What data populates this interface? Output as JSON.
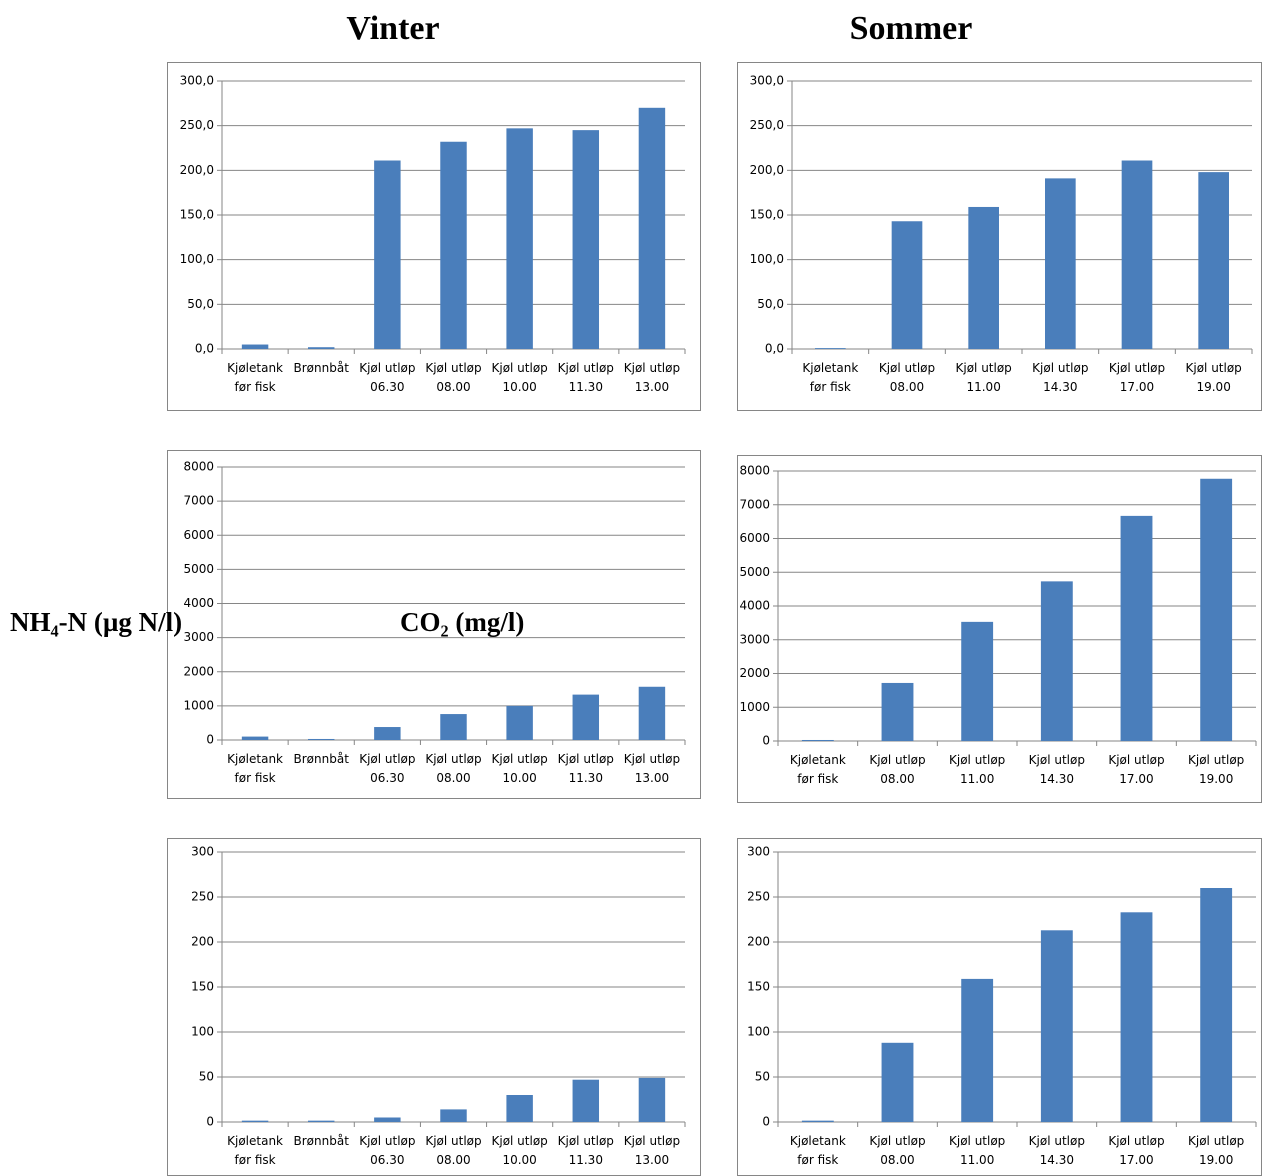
{
  "columns": [
    "Vinter",
    "Sommer"
  ],
  "row_labels": [
    "NH₄-N (µg N/l)",
    "CO₂ (mg/l)"
  ],
  "chart_data": [
    {
      "type": "bar",
      "categories": [
        "Kjøletank før fisk",
        "Brønnbåt",
        "Kjøl utløp 06.30",
        "Kjøl utløp 08.00",
        "Kjøl utløp 10.00",
        "Kjøl utløp 11.30",
        "Kjøl utløp 13.00"
      ],
      "values": [
        5,
        2,
        211,
        232,
        247,
        245,
        270
      ],
      "color": "#4a7ebb",
      "ylim": [
        0,
        300
      ],
      "yticks": [
        {
          "value": 0,
          "label": "0,0"
        },
        {
          "value": 50,
          "label": "50,0"
        },
        {
          "value": 100,
          "label": "100,0"
        },
        {
          "value": 150,
          "label": "150,0"
        },
        {
          "value": 200,
          "label": "200,0"
        },
        {
          "value": 250,
          "label": "250,0"
        },
        {
          "value": 300,
          "label": "300,0"
        }
      ],
      "grid": true
    },
    {
      "type": "bar",
      "categories": [
        "Kjøletank før fisk",
        "Kjøl utløp 08.00",
        "Kjøl utløp 11.00",
        "Kjøl utløp 14.30",
        "Kjøl utløp 17.00",
        "Kjøl utløp 19.00"
      ],
      "values": [
        1,
        143,
        159,
        191,
        211,
        198
      ],
      "color": "#4a7ebb",
      "ylim": [
        0,
        300
      ],
      "yticks": [
        {
          "value": 0,
          "label": "0,0"
        },
        {
          "value": 50,
          "label": "50,0"
        },
        {
          "value": 100,
          "label": "100,0"
        },
        {
          "value": 150,
          "label": "150,0"
        },
        {
          "value": 200,
          "label": "200,0"
        },
        {
          "value": 250,
          "label": "250,0"
        },
        {
          "value": 300,
          "label": "300,0"
        }
      ],
      "grid": true
    },
    {
      "type": "bar",
      "categories": [
        "Kjøletank før fisk",
        "Brønnbåt",
        "Kjøl utløp 06.30",
        "Kjøl utløp 08.00",
        "Kjøl utløp 10.00",
        "Kjøl utløp 11.30",
        "Kjøl utløp 13.00"
      ],
      "values": [
        100,
        30,
        380,
        760,
        1000,
        1330,
        1560
      ],
      "color": "#4a7ebb",
      "ylim": [
        0,
        8000
      ],
      "yticks": [
        0,
        1000,
        2000,
        3000,
        4000,
        5000,
        6000,
        7000,
        8000
      ],
      "grid": true
    },
    {
      "type": "bar",
      "categories": [
        "Kjøletank før fisk",
        "Kjøl utløp 08.00",
        "Kjøl utløp 11.00",
        "Kjøl utløp 14.30",
        "Kjøl utløp 17.00",
        "Kjøl utløp 19.00"
      ],
      "values": [
        30,
        1720,
        3530,
        4730,
        6670,
        7770
      ],
      "color": "#4a7ebb",
      "ylim": [
        0,
        8000
      ],
      "yticks": [
        0,
        1000,
        2000,
        3000,
        4000,
        5000,
        6000,
        7000,
        8000
      ],
      "grid": true
    },
    {
      "type": "bar",
      "categories": [
        "Kjøletank før fisk",
        "Brønnbåt",
        "Kjøl utløp 06.30",
        "Kjøl utløp 08.00",
        "Kjøl utløp 10.00",
        "Kjøl utløp 11.30",
        "Kjøl utløp 13.00"
      ],
      "values": [
        1.5,
        1.5,
        5,
        14,
        30,
        47,
        49
      ],
      "color": "#4a7ebb",
      "ylim": [
        0,
        300
      ],
      "yticks": [
        0,
        50,
        100,
        150,
        200,
        250,
        300
      ],
      "grid": true
    },
    {
      "type": "bar",
      "categories": [
        "Kjøletank før fisk",
        "Kjøl utløp 08.00",
        "Kjøl utløp 11.00",
        "Kjøl utløp 14.30",
        "Kjøl utløp 17.00",
        "Kjøl utløp 19.00"
      ],
      "values": [
        1.5,
        88,
        159,
        213,
        233,
        260
      ],
      "color": "#4a7ebb",
      "ylim": [
        0,
        300
      ],
      "yticks": [
        0,
        50,
        100,
        150,
        200,
        250,
        300
      ],
      "grid": true
    }
  ]
}
